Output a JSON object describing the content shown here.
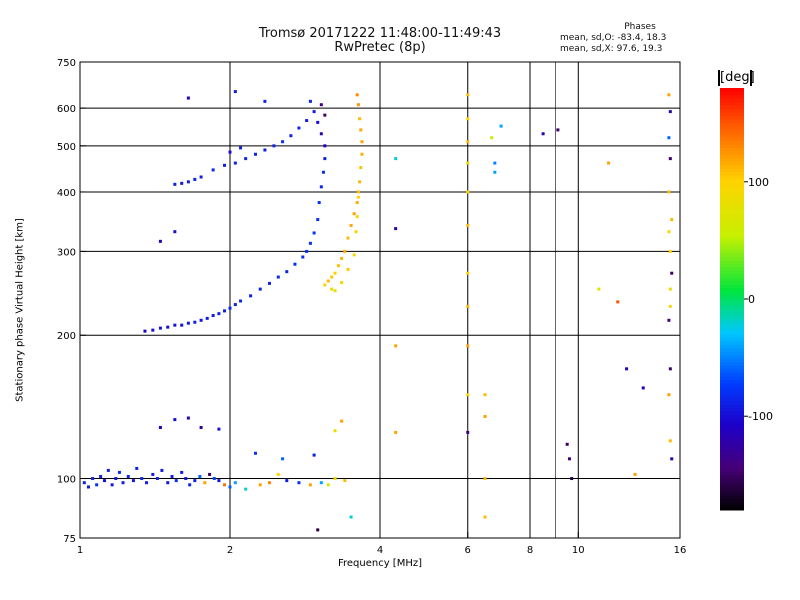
{
  "title_line1": "Tromsø 20171222 11:48:00-11:49:43",
  "title_line2": "RwPretec (8p)",
  "stats": {
    "heading": "Phases",
    "o_mode": "mean, sd,O: -83.4, 18.3",
    "x_mode": "mean, sd,X: 97.6, 19.3"
  },
  "colorbar": {
    "unit": "[deg]",
    "ticks": [
      {
        "label": "100",
        "value": 100
      },
      {
        "label": "0",
        "value": 0
      },
      {
        "label": "-100",
        "value": -100
      }
    ],
    "range": [
      -180,
      180
    ]
  },
  "chart_data": {
    "type": "scatter",
    "xlabel": "Frequency [MHz]",
    "ylabel": "Stationary phase Virtual Height [km]",
    "xscale": "log",
    "yscale": "log",
    "xlim": [
      1,
      16
    ],
    "ylim": [
      75,
      750
    ],
    "xticks": [
      {
        "label": "1",
        "value": 1
      },
      {
        "label": "2",
        "value": 2
      },
      {
        "label": "4",
        "value": 4
      },
      {
        "label": "6",
        "value": 6
      },
      {
        "label": "8",
        "value": 8
      },
      {
        "label": "10",
        "value": 10
      },
      {
        "label": "16",
        "value": 16
      }
    ],
    "xgrid": [
      2,
      4,
      6,
      8,
      10
    ],
    "xminor": [
      9
    ],
    "yticks": [
      {
        "label": "75",
        "value": 75
      },
      {
        "label": "100",
        "value": 100
      },
      {
        "label": "200",
        "value": 200
      },
      {
        "label": "300",
        "value": 300
      },
      {
        "label": "400",
        "value": 400
      },
      {
        "label": "500",
        "value": 500
      },
      {
        "label": "600",
        "value": 600
      },
      {
        "label": "750",
        "value": 750
      }
    ],
    "ygrid": [
      100,
      200,
      300,
      400,
      500,
      600
    ],
    "points": [
      [
        1.02,
        98,
        -90
      ],
      [
        1.04,
        96,
        -95
      ],
      [
        1.06,
        100,
        -85
      ],
      [
        1.08,
        97,
        -80
      ],
      [
        1.1,
        101,
        -90
      ],
      [
        1.12,
        99,
        -100
      ],
      [
        1.14,
        104,
        -88
      ],
      [
        1.16,
        97,
        -92
      ],
      [
        1.18,
        100,
        -95
      ],
      [
        1.2,
        103,
        -80
      ],
      [
        1.22,
        98,
        -90
      ],
      [
        1.25,
        101,
        -85
      ],
      [
        1.28,
        99,
        -95
      ],
      [
        1.3,
        105,
        -90
      ],
      [
        1.33,
        100,
        -82
      ],
      [
        1.36,
        98,
        -88
      ],
      [
        1.4,
        102,
        -92
      ],
      [
        1.43,
        100,
        -86
      ],
      [
        1.46,
        104,
        -90
      ],
      [
        1.5,
        98,
        -95
      ],
      [
        1.53,
        101,
        -88
      ],
      [
        1.56,
        99,
        -80
      ],
      [
        1.6,
        103,
        -90
      ],
      [
        1.63,
        100,
        -94
      ],
      [
        1.66,
        97,
        -86
      ],
      [
        1.7,
        99,
        -90
      ],
      [
        1.74,
        101,
        -60
      ],
      [
        1.78,
        98,
        120
      ],
      [
        1.82,
        102,
        -150
      ],
      [
        1.86,
        100,
        -70
      ],
      [
        1.9,
        99,
        -100
      ],
      [
        1.95,
        97,
        140
      ],
      [
        2.0,
        96,
        -60
      ],
      [
        2.05,
        98,
        -40
      ],
      [
        2.15,
        95,
        -20
      ],
      [
        2.3,
        97,
        120
      ],
      [
        2.4,
        98,
        130
      ],
      [
        2.5,
        102,
        100
      ],
      [
        2.6,
        99,
        -90
      ],
      [
        2.75,
        98,
        -80
      ],
      [
        2.9,
        97,
        120
      ],
      [
        3.05,
        98,
        -40
      ],
      [
        3.15,
        97,
        60
      ],
      [
        3.25,
        100,
        90
      ],
      [
        3.4,
        99,
        110
      ],
      [
        3.5,
        83,
        -20
      ],
      [
        3.0,
        78,
        -160
      ],
      [
        1.45,
        128,
        -110
      ],
      [
        1.55,
        133,
        -100
      ],
      [
        1.65,
        134,
        -120
      ],
      [
        1.75,
        128,
        -130
      ],
      [
        1.9,
        127,
        -100
      ],
      [
        2.25,
        113,
        -80
      ],
      [
        2.55,
        110,
        -60
      ],
      [
        2.95,
        112,
        -90
      ],
      [
        3.25,
        126,
        90
      ],
      [
        3.35,
        132,
        120
      ],
      [
        4.3,
        125,
        120
      ],
      [
        1.35,
        204,
        -110
      ],
      [
        1.4,
        205,
        -100
      ],
      [
        1.45,
        207,
        -95
      ],
      [
        1.5,
        208,
        -100
      ],
      [
        1.55,
        210,
        -98
      ],
      [
        1.6,
        210,
        -95
      ],
      [
        1.65,
        212,
        -92
      ],
      [
        1.7,
        213,
        -90
      ],
      [
        1.75,
        215,
        -95
      ],
      [
        1.8,
        217,
        -90
      ],
      [
        1.85,
        220,
        -92
      ],
      [
        1.9,
        222,
        -88
      ],
      [
        1.95,
        225,
        -90
      ],
      [
        2.0,
        228,
        -86
      ],
      [
        2.05,
        232,
        -88
      ],
      [
        2.1,
        236,
        -85
      ],
      [
        2.2,
        242,
        -90
      ],
      [
        2.3,
        250,
        -85
      ],
      [
        2.4,
        257,
        -88
      ],
      [
        2.5,
        265,
        -82
      ],
      [
        2.6,
        272,
        -85
      ],
      [
        2.7,
        282,
        -80
      ],
      [
        2.8,
        292,
        -84
      ],
      [
        2.85,
        300,
        -82
      ],
      [
        2.9,
        312,
        -80
      ],
      [
        2.95,
        328,
        -78
      ],
      [
        3.0,
        350,
        -80
      ],
      [
        3.02,
        380,
        -82
      ],
      [
        3.05,
        410,
        -85
      ],
      [
        3.08,
        440,
        -80
      ],
      [
        3.1,
        470,
        -90
      ],
      [
        3.1,
        500,
        -110
      ],
      [
        3.05,
        530,
        -120
      ],
      [
        3.0,
        560,
        -100
      ],
      [
        2.95,
        590,
        -90
      ],
      [
        2.9,
        620,
        -85
      ],
      [
        3.05,
        610,
        -140
      ],
      [
        3.1,
        580,
        -150
      ],
      [
        1.55,
        415,
        -90
      ],
      [
        1.6,
        417,
        -95
      ],
      [
        1.65,
        420,
        -92
      ],
      [
        1.7,
        425,
        -88
      ],
      [
        1.75,
        430,
        -90
      ],
      [
        1.85,
        445,
        -85
      ],
      [
        1.95,
        455,
        -90
      ],
      [
        2.05,
        460,
        -88
      ],
      [
        2.15,
        470,
        -85
      ],
      [
        2.25,
        480,
        -88
      ],
      [
        2.35,
        490,
        -90
      ],
      [
        2.45,
        500,
        -85
      ],
      [
        2.55,
        510,
        -82
      ],
      [
        2.65,
        525,
        -88
      ],
      [
        2.75,
        545,
        -85
      ],
      [
        2.85,
        565,
        -90
      ],
      [
        1.45,
        315,
        -110
      ],
      [
        1.55,
        330,
        -100
      ],
      [
        2.0,
        485,
        -100
      ],
      [
        2.1,
        495,
        -90
      ],
      [
        2.35,
        620,
        -85
      ],
      [
        3.1,
        255,
        100
      ],
      [
        3.15,
        260,
        110
      ],
      [
        3.2,
        265,
        105
      ],
      [
        3.25,
        270,
        100
      ],
      [
        3.3,
        280,
        108
      ],
      [
        3.35,
        290,
        112
      ],
      [
        3.4,
        300,
        115
      ],
      [
        3.45,
        320,
        110
      ],
      [
        3.5,
        340,
        118
      ],
      [
        3.55,
        360,
        120
      ],
      [
        3.6,
        380,
        115
      ],
      [
        3.62,
        400,
        110
      ],
      [
        3.64,
        420,
        112
      ],
      [
        3.66,
        450,
        108
      ],
      [
        3.68,
        480,
        115
      ],
      [
        3.68,
        510,
        120
      ],
      [
        3.66,
        540,
        118
      ],
      [
        3.64,
        570,
        110
      ],
      [
        3.62,
        610,
        125
      ],
      [
        3.6,
        640,
        130
      ],
      [
        3.2,
        250,
        90
      ],
      [
        3.25,
        248,
        80
      ],
      [
        3.35,
        258,
        100
      ],
      [
        3.45,
        275,
        105
      ],
      [
        3.55,
        295,
        95
      ],
      [
        3.58,
        330,
        100
      ],
      [
        3.6,
        355,
        90
      ],
      [
        3.62,
        390,
        100
      ],
      [
        1.65,
        630,
        -110
      ],
      [
        2.05,
        650,
        -90
      ],
      [
        4.3,
        470,
        -20
      ],
      [
        4.3,
        335,
        -120
      ],
      [
        4.3,
        190,
        120
      ],
      [
        6.0,
        640,
        110
      ],
      [
        6.0,
        570,
        100
      ],
      [
        6.0,
        510,
        110
      ],
      [
        6.0,
        460,
        90
      ],
      [
        6.0,
        400,
        100
      ],
      [
        6.0,
        340,
        110
      ],
      [
        6.0,
        270,
        100
      ],
      [
        6.0,
        230,
        110
      ],
      [
        6.0,
        190,
        120
      ],
      [
        6.0,
        150,
        100
      ],
      [
        6.0,
        125,
        -140
      ],
      [
        6.5,
        150,
        110
      ],
      [
        6.5,
        135,
        120
      ],
      [
        6.5,
        100,
        110
      ],
      [
        6.5,
        83,
        110
      ],
      [
        6.7,
        520,
        60
      ],
      [
        6.8,
        460,
        -50
      ],
      [
        6.8,
        440,
        -40
      ],
      [
        7.0,
        550,
        -40
      ],
      [
        8.5,
        530,
        -120
      ],
      [
        9.1,
        540,
        -150
      ],
      [
        9.5,
        118,
        -150
      ],
      [
        9.6,
        110,
        -140
      ],
      [
        9.7,
        100,
        -160
      ],
      [
        11.0,
        250,
        70
      ],
      [
        11.5,
        460,
        120
      ],
      [
        12.0,
        235,
        150
      ],
      [
        12.5,
        170,
        -110
      ],
      [
        13.0,
        102,
        120
      ],
      [
        13.5,
        155,
        -110
      ],
      [
        15.2,
        640,
        120
      ],
      [
        15.3,
        590,
        -120
      ],
      [
        15.2,
        520,
        -60
      ],
      [
        15.3,
        470,
        -150
      ],
      [
        15.2,
        400,
        110
      ],
      [
        15.4,
        350,
        110
      ],
      [
        15.3,
        300,
        100
      ],
      [
        15.4,
        270,
        -150
      ],
      [
        15.3,
        250,
        80
      ],
      [
        15.2,
        215,
        -140
      ],
      [
        15.3,
        170,
        -150
      ],
      [
        15.2,
        150,
        120
      ],
      [
        15.3,
        120,
        110
      ],
      [
        15.4,
        110,
        -120
      ],
      [
        15.2,
        330,
        100
      ],
      [
        15.3,
        230,
        90
      ]
    ]
  }
}
